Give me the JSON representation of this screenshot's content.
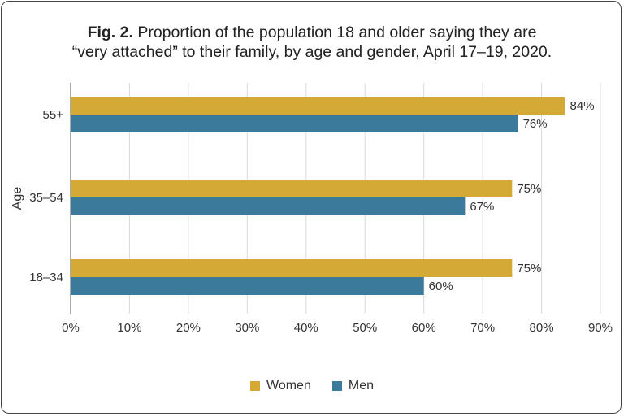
{
  "title": {
    "prefix": "Fig. 2.",
    "line1": " Proportion of the population 18 and older saying they are",
    "line2": "“very attached” to their family, by age and gender, April 17–19, 2020."
  },
  "colors": {
    "women": "#d4a935",
    "men": "#3b7a9b",
    "grid": "#d9d9d9",
    "axis": "#555555"
  },
  "chart_data": {
    "type": "bar",
    "orientation": "horizontal",
    "ylabel": "Age",
    "categories": [
      "55+",
      "35–54",
      "18–34"
    ],
    "series": [
      {
        "name": "Women",
        "values": [
          84,
          75,
          75
        ],
        "labels": [
          "84%",
          "75%",
          "75%"
        ]
      },
      {
        "name": "Men",
        "values": [
          76,
          67,
          60
        ],
        "labels": [
          "76%",
          "67%",
          "60%"
        ]
      }
    ],
    "xlim": [
      0,
      90
    ],
    "xticks": [
      0,
      10,
      20,
      30,
      40,
      50,
      60,
      70,
      80,
      90
    ],
    "xtick_labels": [
      "0%",
      "10%",
      "20%",
      "30%",
      "40%",
      "50%",
      "60%",
      "70%",
      "80%",
      "90%"
    ],
    "grid": true,
    "legend_position": "bottom"
  }
}
